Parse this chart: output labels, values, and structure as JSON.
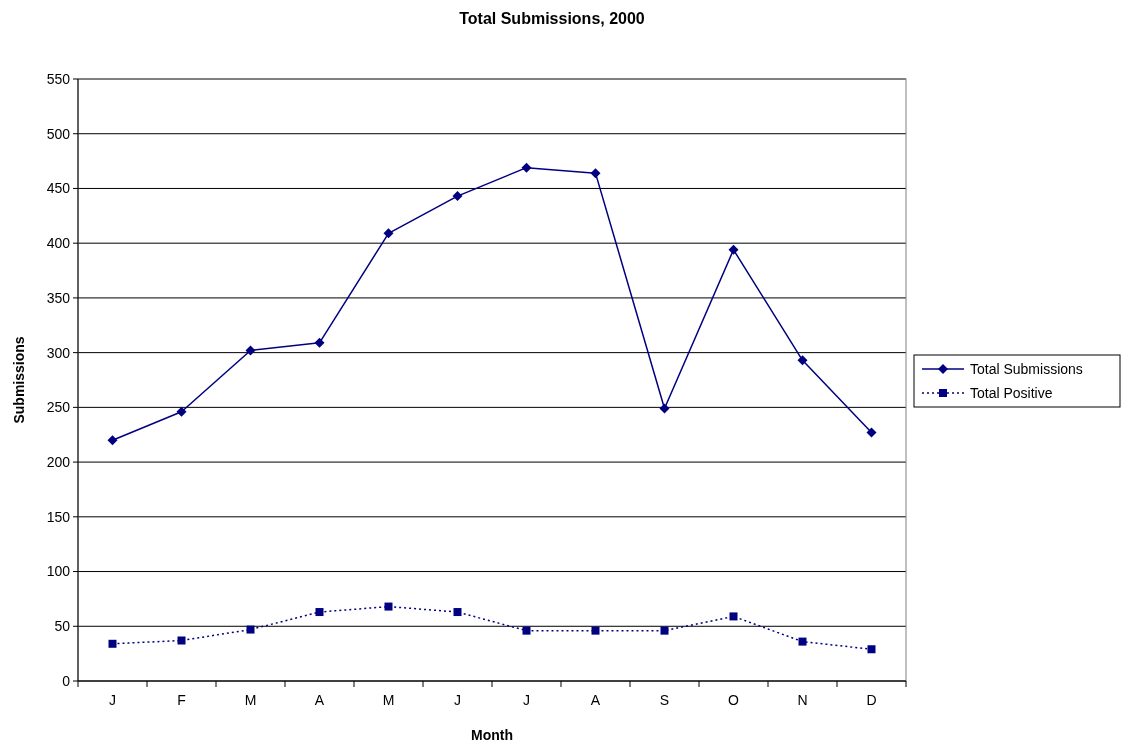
{
  "chart_data": {
    "type": "line",
    "title": "Total Submissions, 2000",
    "xlabel": "Month",
    "ylabel": "Submissions",
    "categories": [
      "J",
      "F",
      "M",
      "A",
      "M",
      "J",
      "J",
      "A",
      "S",
      "O",
      "N",
      "D"
    ],
    "series": [
      {
        "name": "Total Submissions",
        "color": "#000080",
        "marker": "diamond",
        "line_style": "solid",
        "values": [
          220,
          246,
          302,
          309,
          409,
          443,
          469,
          464,
          249,
          394,
          293,
          227
        ]
      },
      {
        "name": "Total Positive",
        "color": "#000080",
        "marker": "square",
        "line_style": "dotted",
        "values": [
          34,
          37,
          47,
          63,
          68,
          63,
          46,
          46,
          46,
          59,
          36,
          29
        ]
      }
    ],
    "ylim": [
      0,
      550
    ],
    "yticks": [
      0,
      50,
      100,
      150,
      200,
      250,
      300,
      350,
      400,
      450,
      500,
      550
    ],
    "grid": "y",
    "legend": "right"
  }
}
